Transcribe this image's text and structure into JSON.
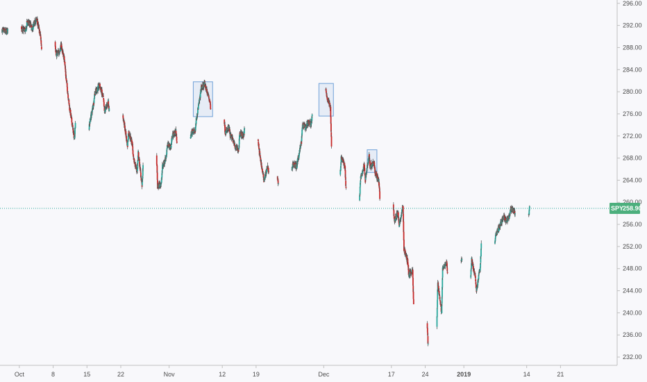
{
  "chart_data": {
    "type": "candlestick",
    "symbol": "SPY",
    "last_price": "258.90",
    "price_axis": {
      "range": [
        230.5,
        296.6
      ],
      "ticks": [
        "296.00",
        "292.00",
        "288.00",
        "284.00",
        "280.00",
        "276.00",
        "272.00",
        "268.00",
        "264.00",
        "260.00",
        "256.00",
        "252.00",
        "248.00",
        "244.00",
        "240.00",
        "236.00",
        "232.00"
      ]
    },
    "time_axis": {
      "range": [
        "2018-09-27",
        "2019-01-31"
      ],
      "ticks": [
        {
          "date": "2018-10-01",
          "label": "Oct",
          "bold": false
        },
        {
          "date": "2018-10-08",
          "label": "8",
          "bold": false
        },
        {
          "date": "2018-10-15",
          "label": "15",
          "bold": false
        },
        {
          "date": "2018-10-22",
          "label": "22",
          "bold": false
        },
        {
          "date": "2018-11-01",
          "label": "Nov",
          "bold": false
        },
        {
          "date": "2018-11-12",
          "label": "12",
          "bold": false
        },
        {
          "date": "2018-11-19",
          "label": "19",
          "bold": false
        },
        {
          "date": "2018-12-03",
          "label": "Dec",
          "bold": false
        },
        {
          "date": "2018-12-17",
          "label": "17",
          "bold": false
        },
        {
          "date": "2018-12-24",
          "label": "24",
          "bold": false
        },
        {
          "date": "2019-01-01",
          "label": "2019",
          "bold": true
        },
        {
          "date": "2019-01-14",
          "label": "14",
          "bold": false
        },
        {
          "date": "2019-01-21",
          "label": "21",
          "bold": false
        }
      ]
    },
    "colors": {
      "up": "#26a69a",
      "down": "#c62828",
      "wick": "#505050",
      "box": "#6ea0d8",
      "price_line": "#26a69a",
      "price_tag": "#4caf7d",
      "axis": "#bfbfbf"
    },
    "grid": false,
    "path": [
      [
        "2018-09-27 10:00",
        291.2
      ],
      [
        "2018-09-27 15:00",
        291.0
      ],
      [
        "2018-09-28 10:00",
        290.8
      ],
      [
        "2018-09-28 15:00",
        291.0
      ],
      [
        "2018-10-01 10:00",
        291.8
      ],
      [
        "2018-10-01 15:00",
        291.3
      ],
      [
        "2018-10-02 10:00",
        291.1
      ],
      [
        "2018-10-02 15:00",
        292.7
      ],
      [
        "2018-10-03 10:00",
        292.0
      ],
      [
        "2018-10-03 15:00",
        291.2
      ],
      [
        "2018-10-04 10:00",
        292.9
      ],
      [
        "2018-10-04 15:00",
        293.1
      ],
      [
        "2018-10-05 10:00",
        290.0
      ],
      [
        "2018-10-05 15:00",
        288.0
      ],
      [
        "2018-10-08 10:00",
        289.0
      ],
      [
        "2018-10-08 15:00",
        286.6
      ],
      [
        "2018-10-09 10:00",
        287.4
      ],
      [
        "2018-10-09 15:00",
        288.5
      ],
      [
        "2018-10-10 10:00",
        285.5
      ],
      [
        "2018-10-10 15:00",
        283.0
      ],
      [
        "2018-10-11 10:00",
        277.0
      ],
      [
        "2018-10-11 15:00",
        276.0
      ],
      [
        "2018-10-12 10:00",
        271.5
      ],
      [
        "2018-10-12 15:00",
        274.5
      ],
      [
        "2018-10-15 10:00",
        273.2
      ],
      [
        "2018-10-15 15:00",
        274.6
      ],
      [
        "2018-10-16 10:00",
        278.0
      ],
      [
        "2018-10-16 15:00",
        279.8
      ],
      [
        "2018-10-17 10:00",
        280.8
      ],
      [
        "2018-10-17 15:00",
        281.2
      ],
      [
        "2018-10-18 10:00",
        278.8
      ],
      [
        "2018-10-18 15:00",
        276.4
      ],
      [
        "2018-10-19 10:00",
        278.2
      ],
      [
        "2018-10-19 15:00",
        276.6
      ],
      [
        "2018-10-22 10:00",
        275.6
      ],
      [
        "2018-10-22 15:00",
        274.8
      ],
      [
        "2018-10-23 10:00",
        270.2
      ],
      [
        "2018-10-23 15:00",
        272.8
      ],
      [
        "2018-10-24 10:00",
        270.5
      ],
      [
        "2018-10-24 15:00",
        267.8
      ],
      [
        "2018-10-25 10:00",
        265.6
      ],
      [
        "2018-10-25 15:00",
        269.0
      ],
      [
        "2018-10-26 10:00",
        263.0
      ],
      [
        "2018-10-26 15:00",
        266.4
      ],
      [
        "2018-10-29 10:00",
        268.4
      ],
      [
        "2018-10-29 15:00",
        262.8
      ],
      [
        "2018-10-30 10:00",
        263.5
      ],
      [
        "2018-10-30 15:00",
        266.4
      ],
      [
        "2018-10-31 10:00",
        268.2
      ],
      [
        "2018-10-31 15:00",
        270.4
      ],
      [
        "2018-11-01 10:00",
        270.0
      ],
      [
        "2018-11-01 15:00",
        272.0
      ],
      [
        "2018-11-02 10:00",
        272.8
      ],
      [
        "2018-11-02 15:00",
        271.0
      ],
      [
        "2018-11-05 10:00",
        271.5
      ],
      [
        "2018-11-05 15:00",
        272.6
      ],
      [
        "2018-11-06 10:00",
        273.0
      ],
      [
        "2018-11-06 15:00",
        275.0
      ],
      [
        "2018-11-07 10:00",
        279.0
      ],
      [
        "2018-11-07 15:00",
        280.6
      ],
      [
        "2018-11-08 10:00",
        281.4
      ],
      [
        "2018-11-08 15:00",
        280.6
      ],
      [
        "2018-11-09 10:00",
        278.5
      ],
      [
        "2018-11-09 15:00",
        277.0
      ],
      [
        "2018-11-12 10:00",
        275.0
      ],
      [
        "2018-11-12 15:00",
        272.6
      ],
      [
        "2018-11-13 10:00",
        273.5
      ],
      [
        "2018-11-13 15:00",
        272.2
      ],
      [
        "2018-11-14 10:00",
        271.0
      ],
      [
        "2018-11-14 15:00",
        270.0
      ],
      [
        "2018-11-15 10:00",
        269.5
      ],
      [
        "2018-11-15 15:00",
        272.6
      ],
      [
        "2018-11-16 10:00",
        272.0
      ],
      [
        "2018-11-16 15:00",
        273.2
      ],
      [
        "2018-11-19 10:00",
        271.4
      ],
      [
        "2018-11-19 15:00",
        269.4
      ],
      [
        "2018-11-20 10:00",
        265.2
      ],
      [
        "2018-11-20 15:00",
        264.0
      ],
      [
        "2018-11-21 10:00",
        266.4
      ],
      [
        "2018-11-21 15:00",
        265.4
      ],
      [
        "2018-11-23 10:00",
        264.6
      ],
      [
        "2018-11-23 15:00",
        263.1
      ],
      [
        "2018-11-26 10:00",
        265.8
      ],
      [
        "2018-11-26 15:00",
        267.0
      ],
      [
        "2018-11-27 10:00",
        266.5
      ],
      [
        "2018-11-27 15:00",
        267.5
      ],
      [
        "2018-11-28 10:00",
        271.0
      ],
      [
        "2018-11-28 15:00",
        274.0
      ],
      [
        "2018-11-29 10:00",
        273.5
      ],
      [
        "2018-11-29 15:00",
        274.5
      ],
      [
        "2018-11-30 10:00",
        274.2
      ],
      [
        "2018-11-30 15:00",
        275.6
      ],
      [
        "2018-12-03 10:00",
        280.4
      ],
      [
        "2018-12-03 15:00",
        279.2
      ],
      [
        "2018-12-04 10:00",
        277.2
      ],
      [
        "2018-12-04 15:00",
        270.2
      ],
      [
        "2018-12-06 10:00",
        265.0
      ],
      [
        "2018-12-06 15:00",
        268.2
      ],
      [
        "2018-12-07 10:00",
        266.5
      ],
      [
        "2018-12-07 15:00",
        262.2
      ],
      [
        "2018-12-10 10:00",
        260.4
      ],
      [
        "2018-12-10 15:00",
        264.2
      ],
      [
        "2018-12-11 10:00",
        266.8
      ],
      [
        "2018-12-11 15:00",
        264.0
      ],
      [
        "2018-12-12 10:00",
        268.6
      ],
      [
        "2018-12-12 15:00",
        266.4
      ],
      [
        "2018-12-13 10:00",
        267.4
      ],
      [
        "2018-12-13 15:00",
        265.6
      ],
      [
        "2018-12-14 10:00",
        263.8
      ],
      [
        "2018-12-14 15:00",
        261.0
      ],
      [
        "2018-12-17 10:00",
        259.5
      ],
      [
        "2018-12-17 15:00",
        256.6
      ],
      [
        "2018-12-18 10:00",
        258.2
      ],
      [
        "2018-12-18 15:00",
        255.6
      ],
      [
        "2018-12-19 10:00",
        259.4
      ],
      [
        "2018-12-19 15:00",
        251.6
      ],
      [
        "2018-12-20 10:00",
        249.2
      ],
      [
        "2018-12-20 15:00",
        246.8
      ],
      [
        "2018-12-21 10:00",
        247.8
      ],
      [
        "2018-12-21 15:00",
        241.2
      ],
      [
        "2018-12-24 10:00",
        238.0
      ],
      [
        "2018-12-24 15:00",
        234.0
      ],
      [
        "2018-12-26 10:00",
        237.6
      ],
      [
        "2018-12-26 15:00",
        245.6
      ],
      [
        "2018-12-27 10:00",
        240.0
      ],
      [
        "2018-12-27 15:00",
        247.8
      ],
      [
        "2018-12-28 10:00",
        249.2
      ],
      [
        "2018-12-28 15:00",
        247.6
      ],
      [
        "2018-12-31 10:00",
        249.4
      ],
      [
        "2018-12-31 15:00",
        249.8
      ],
      [
        "2019-01-02 10:00",
        246.4
      ],
      [
        "2019-01-02 15:00",
        249.6
      ],
      [
        "2019-01-03 10:00",
        246.2
      ],
      [
        "2019-01-03 15:00",
        244.0
      ],
      [
        "2019-01-04 10:00",
        248.4
      ],
      [
        "2019-01-04 15:00",
        252.2
      ],
      [
        "2019-01-07 10:00",
        252.6
      ],
      [
        "2019-01-07 15:00",
        254.2
      ],
      [
        "2019-01-08 10:00",
        255.6
      ],
      [
        "2019-01-08 15:00",
        256.2
      ],
      [
        "2019-01-09 10:00",
        257.4
      ],
      [
        "2019-01-09 15:00",
        256.6
      ],
      [
        "2019-01-10 10:00",
        257.2
      ],
      [
        "2019-01-10 15:00",
        258.8
      ],
      [
        "2019-01-11 10:00",
        258.4
      ],
      [
        "2019-01-11 15:00",
        258.0
      ],
      [
        "2019-01-14 10:00",
        257.6
      ],
      [
        "2019-01-14 15:00",
        258.9
      ]
    ],
    "highlight_boxes": [
      {
        "from": "2018-11-06",
        "to": "2018-11-10",
        "low": 275.5,
        "high": 281.8
      },
      {
        "from": "2018-12-02",
        "to": "2018-12-05",
        "low": 275.6,
        "high": 281.5
      },
      {
        "from": "2018-12-12",
        "to": "2018-12-14",
        "low": 265.4,
        "high": 269.5
      }
    ]
  }
}
